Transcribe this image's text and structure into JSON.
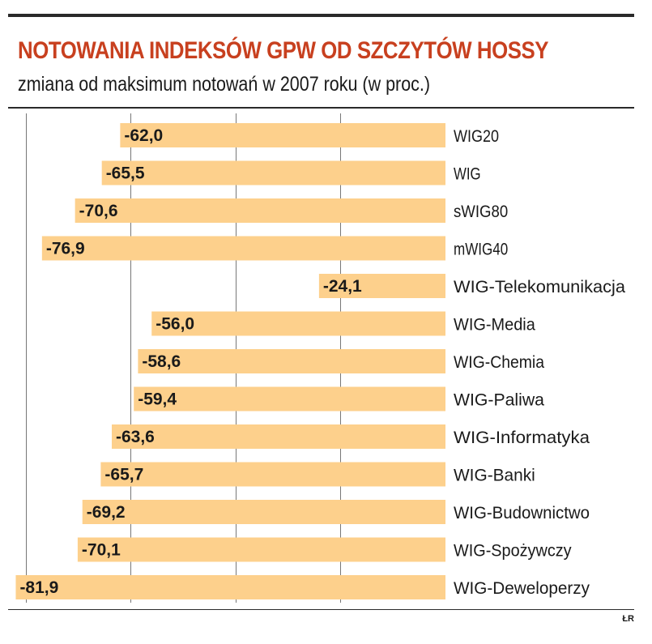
{
  "title": "NOTOWANIA INDEKSÓW GPW OD SZCZYTÓW HOSSY",
  "subtitle": "zmiana od maksimum notowań w 2007 roku (w proc.)",
  "credit": "ŁR",
  "colors": {
    "bar": "#fdd08c",
    "title": "#c8401f",
    "grid": "#777777"
  },
  "chart_data": {
    "type": "bar",
    "orientation": "horizontal",
    "title": "NOTOWANIA INDEKSÓW GPW OD SZCZYTÓW HOSSY",
    "subtitle": "zmiana od maksimum notowań w 2007 roku (w proc.)",
    "categories": [
      "WIG20",
      "WIG",
      "sWIG80",
      "mWIG40",
      "WIG-Telekomunikacja",
      "WIG-Media",
      "WIG-Chemia",
      "WIG-Paliwa",
      "WIG-Informatyka",
      "WIG-Banki",
      "WIG-Budownictwo",
      "WIG-Spożywczy",
      "WIG-Deweloperzy"
    ],
    "values": [
      -62.0,
      -65.5,
      -70.6,
      -76.9,
      -24.1,
      -56.0,
      -58.6,
      -59.4,
      -63.6,
      -65.7,
      -69.2,
      -70.1,
      -81.9
    ],
    "labels": [
      "-62,0",
      "-65,5",
      "-70,6",
      "-76,9",
      "-24,1",
      "-56,0",
      "-58,6",
      "-59,4",
      "-63,6",
      "-65,7",
      "-69,2",
      "-70,1",
      "-81,9"
    ],
    "xlim": [
      -82,
      0
    ],
    "xgrid": [
      -80,
      -60,
      -40,
      -20
    ],
    "grid": true,
    "legend": "none"
  }
}
